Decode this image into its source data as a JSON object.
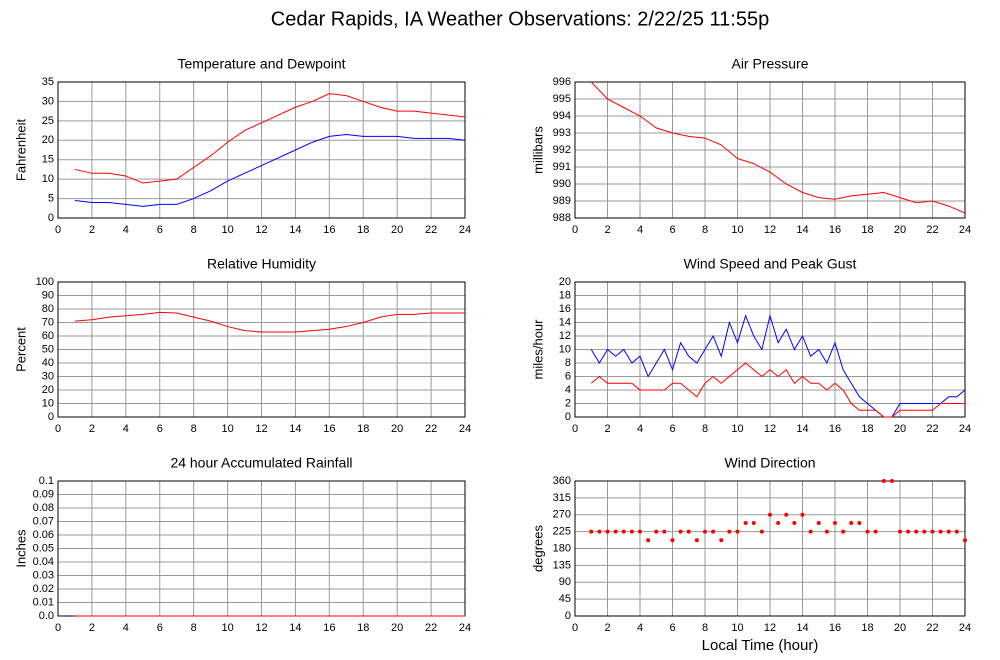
{
  "title": "Cedar Rapids, IA Weather Observations: 2/22/25 11:55p",
  "xlabel": "Local Time (hour)",
  "chart_data": [
    {
      "type": "line",
      "title": "Temperature and Dewpoint",
      "ylabel": "Fahrenheit",
      "x": [
        1,
        2,
        3,
        4,
        5,
        6,
        7,
        8,
        9,
        10,
        11,
        12,
        13,
        14,
        15,
        16,
        17,
        18,
        19,
        20,
        21,
        22,
        23,
        24
      ],
      "series": [
        {
          "color": "#ff0000",
          "values": [
            12.5,
            11.5,
            11.5,
            10.8,
            9,
            9.5,
            10,
            13,
            16,
            19.5,
            22.5,
            24.5,
            26.5,
            28.5,
            30,
            32,
            31.5,
            30,
            28.5,
            27.5,
            27.5,
            27,
            26.5,
            26
          ]
        },
        {
          "color": "#0000ff",
          "values": [
            4.5,
            4,
            4,
            3.5,
            3,
            3.5,
            3.5,
            5,
            7,
            9.5,
            11.5,
            13.5,
            15.5,
            17.5,
            19.5,
            21,
            21.5,
            21,
            21,
            21,
            20.5,
            20.5,
            20.5,
            20
          ]
        }
      ],
      "xlim": [
        0,
        24
      ],
      "xticks": [
        0,
        2,
        4,
        6,
        8,
        10,
        12,
        14,
        16,
        18,
        20,
        22,
        24
      ],
      "ylim": [
        0,
        35
      ],
      "yticks": [
        0,
        5,
        10,
        15,
        20,
        25,
        30,
        35
      ],
      "grid": true
    },
    {
      "type": "line",
      "title": "Air Pressure",
      "ylabel": "millibars",
      "x": [
        1,
        2,
        3,
        4,
        5,
        6,
        7,
        8,
        9,
        10,
        11,
        12,
        13,
        14,
        15,
        16,
        17,
        18,
        19,
        20,
        21,
        22,
        23,
        24
      ],
      "series": [
        {
          "color": "#ff0000",
          "values": [
            996,
            995,
            994.5,
            994,
            993.3,
            993,
            992.8,
            992.7,
            992.3,
            991.5,
            991.2,
            990.7,
            990,
            989.5,
            989.2,
            989.1,
            989.3,
            989.4,
            989.5,
            989.2,
            988.9,
            989,
            988.7,
            988.3
          ]
        }
      ],
      "xlim": [
        0,
        24
      ],
      "xticks": [
        0,
        2,
        4,
        6,
        8,
        10,
        12,
        14,
        16,
        18,
        20,
        22,
        24
      ],
      "ylim": [
        988,
        996
      ],
      "yticks": [
        988,
        989,
        990,
        991,
        992,
        993,
        994,
        995,
        996
      ],
      "grid": true
    },
    {
      "type": "line",
      "title": "Relative Humidity",
      "ylabel": "Percent",
      "x": [
        1,
        2,
        3,
        4,
        5,
        6,
        7,
        8,
        9,
        10,
        11,
        12,
        13,
        14,
        15,
        16,
        17,
        18,
        19,
        20,
        21,
        22,
        23,
        24
      ],
      "series": [
        {
          "color": "#ff0000",
          "values": [
            71,
            72,
            74,
            75,
            76,
            77.5,
            77,
            74,
            71,
            67,
            64,
            63,
            63,
            63,
            64,
            65,
            67,
            70,
            74,
            76,
            76,
            77,
            77,
            77
          ]
        }
      ],
      "xlim": [
        0,
        24
      ],
      "xticks": [
        0,
        2,
        4,
        6,
        8,
        10,
        12,
        14,
        16,
        18,
        20,
        22,
        24
      ],
      "ylim": [
        0,
        100
      ],
      "yticks": [
        0,
        10,
        20,
        30,
        40,
        50,
        60,
        70,
        80,
        90,
        100
      ],
      "grid": true
    },
    {
      "type": "line",
      "title": "Wind Speed and Peak Gust",
      "ylabel": "miles/hour",
      "x": [
        1,
        1.5,
        2,
        2.5,
        3,
        3.5,
        4,
        4.5,
        5,
        5.5,
        6,
        6.5,
        7,
        7.5,
        8,
        8.5,
        9,
        9.5,
        10,
        10.5,
        11,
        11.5,
        12,
        12.5,
        13,
        13.5,
        14,
        14.5,
        15,
        15.5,
        16,
        16.5,
        17,
        17.5,
        18,
        18.5,
        19,
        19.5,
        20,
        20.5,
        21,
        21.5,
        22,
        22.5,
        23,
        23.5,
        24
      ],
      "series": [
        {
          "color": "#0000ff",
          "values": [
            10,
            8,
            10,
            9,
            10,
            8,
            9,
            6,
            8,
            10,
            7,
            11,
            9,
            8,
            10,
            12,
            9,
            14,
            11,
            15,
            12,
            10,
            15,
            11,
            13,
            10,
            12,
            9,
            10,
            8,
            11,
            7,
            5,
            3,
            2,
            1,
            0,
            0,
            2,
            2,
            2,
            2,
            2,
            2,
            3,
            3,
            4
          ]
        },
        {
          "color": "#ff0000",
          "values": [
            5,
            6,
            5,
            5,
            5,
            5,
            4,
            4,
            4,
            4,
            5,
            5,
            4,
            3,
            5,
            6,
            5,
            6,
            7,
            8,
            7,
            6,
            7,
            6,
            7,
            5,
            6,
            5,
            5,
            4,
            5,
            4,
            2,
            1,
            1,
            1,
            0,
            0,
            1,
            1,
            1,
            1,
            1,
            2,
            2,
            2,
            2
          ]
        }
      ],
      "xlim": [
        0,
        24
      ],
      "xticks": [
        0,
        2,
        4,
        6,
        8,
        10,
        12,
        14,
        16,
        18,
        20,
        22,
        24
      ],
      "ylim": [
        0,
        20
      ],
      "yticks": [
        0,
        2,
        4,
        6,
        8,
        10,
        12,
        14,
        16,
        18,
        20
      ],
      "grid": true
    },
    {
      "type": "line",
      "title": "24 hour Accumulated Rainfall",
      "ylabel": "Inches",
      "x": [
        1,
        24
      ],
      "series": [
        {
          "color": "#ff0000",
          "values": [
            0,
            0
          ]
        }
      ],
      "xlim": [
        0,
        24
      ],
      "xticks": [
        0,
        2,
        4,
        6,
        8,
        10,
        12,
        14,
        16,
        18,
        20,
        22,
        24
      ],
      "ylim": [
        0,
        0.1
      ],
      "yticks": [
        {
          "value": 0,
          "label": "0.0"
        },
        0.01,
        0.02,
        0.03,
        0.04,
        0.05,
        0.06,
        0.07,
        0.08,
        0.09,
        0.1
      ],
      "grid": true
    },
    {
      "type": "scatter",
      "title": "Wind Direction",
      "ylabel": "degrees",
      "color": "#ff0000",
      "x": [
        1,
        1.5,
        2,
        2.5,
        3,
        3.5,
        4,
        4.5,
        5,
        5.5,
        6,
        6.5,
        7,
        7.5,
        8,
        8.5,
        9,
        9.5,
        10,
        10.5,
        11,
        11.5,
        12,
        12.5,
        13,
        13.5,
        14,
        14.5,
        15,
        15.5,
        16,
        16.5,
        17,
        17.5,
        18,
        18.5,
        19,
        19.5,
        20,
        20.5,
        21,
        21.5,
        22,
        22.5,
        23,
        23.5,
        24
      ],
      "values": [
        225,
        225,
        225,
        225,
        225,
        225,
        225,
        202,
        225,
        225,
        202,
        225,
        225,
        202,
        225,
        225,
        202,
        225,
        225,
        248,
        248,
        225,
        270,
        248,
        270,
        248,
        270,
        225,
        248,
        225,
        248,
        225,
        248,
        248,
        225,
        225,
        360,
        360,
        225,
        225,
        225,
        225,
        225,
        225,
        225,
        225,
        202
      ],
      "xlim": [
        0,
        24
      ],
      "xticks": [
        0,
        2,
        4,
        6,
        8,
        10,
        12,
        14,
        16,
        18,
        20,
        22,
        24
      ],
      "ylim": [
        0,
        360
      ],
      "yticks": [
        0,
        45,
        90,
        135,
        180,
        225,
        270,
        315,
        360
      ],
      "grid": true
    }
  ]
}
